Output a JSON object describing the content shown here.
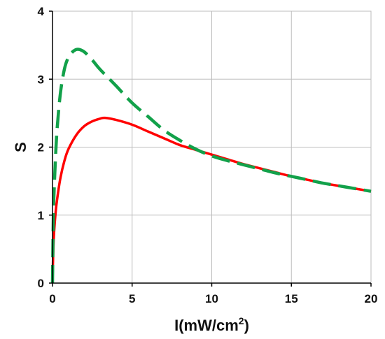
{
  "chart_data": {
    "type": "line",
    "xlabel_main": "I(mW/cm",
    "xlabel_sup": "2",
    "xlabel_close": ")",
    "ylabel": "S",
    "xlim": [
      0,
      20
    ],
    "ylim": [
      0,
      4
    ],
    "x_ticks": [
      "0",
      "5",
      "10",
      "15",
      "20"
    ],
    "y_ticks": [
      "0",
      "1",
      "2",
      "3",
      "4"
    ],
    "grid": true,
    "series": [
      {
        "color": "#ff0000",
        "style": "solid",
        "x": [
          0,
          0.05,
          0.1,
          0.2,
          0.3,
          0.5,
          0.75,
          1,
          1.5,
          2,
          2.5,
          3,
          3.3,
          4,
          5,
          6,
          7,
          8,
          9,
          10,
          11,
          12,
          13,
          14,
          15,
          16,
          17,
          18,
          19,
          20
        ],
        "y": [
          0,
          0.5,
          0.75,
          1.05,
          1.25,
          1.55,
          1.8,
          1.97,
          2.18,
          2.31,
          2.38,
          2.42,
          2.43,
          2.4,
          2.33,
          2.23,
          2.13,
          2.03,
          1.96,
          1.89,
          1.82,
          1.75,
          1.69,
          1.63,
          1.57,
          1.52,
          1.47,
          1.43,
          1.39,
          1.35
        ]
      },
      {
        "color": "#12a14a",
        "style": "dashed",
        "x": [
          0,
          0.05,
          0.1,
          0.2,
          0.3,
          0.5,
          0.75,
          1,
          1.3,
          1.6,
          2,
          2.5,
          3,
          4,
          5,
          6,
          7,
          8,
          9,
          10,
          11,
          12,
          13,
          14,
          15,
          16,
          17,
          18,
          19,
          20
        ],
        "y": [
          0,
          0.95,
          1.35,
          1.9,
          2.3,
          2.8,
          3.15,
          3.32,
          3.41,
          3.44,
          3.4,
          3.28,
          3.14,
          2.9,
          2.65,
          2.45,
          2.25,
          2.1,
          1.97,
          1.87,
          1.8,
          1.74,
          1.68,
          1.62,
          1.57,
          1.52,
          1.47,
          1.43,
          1.39,
          1.35
        ]
      }
    ]
  }
}
